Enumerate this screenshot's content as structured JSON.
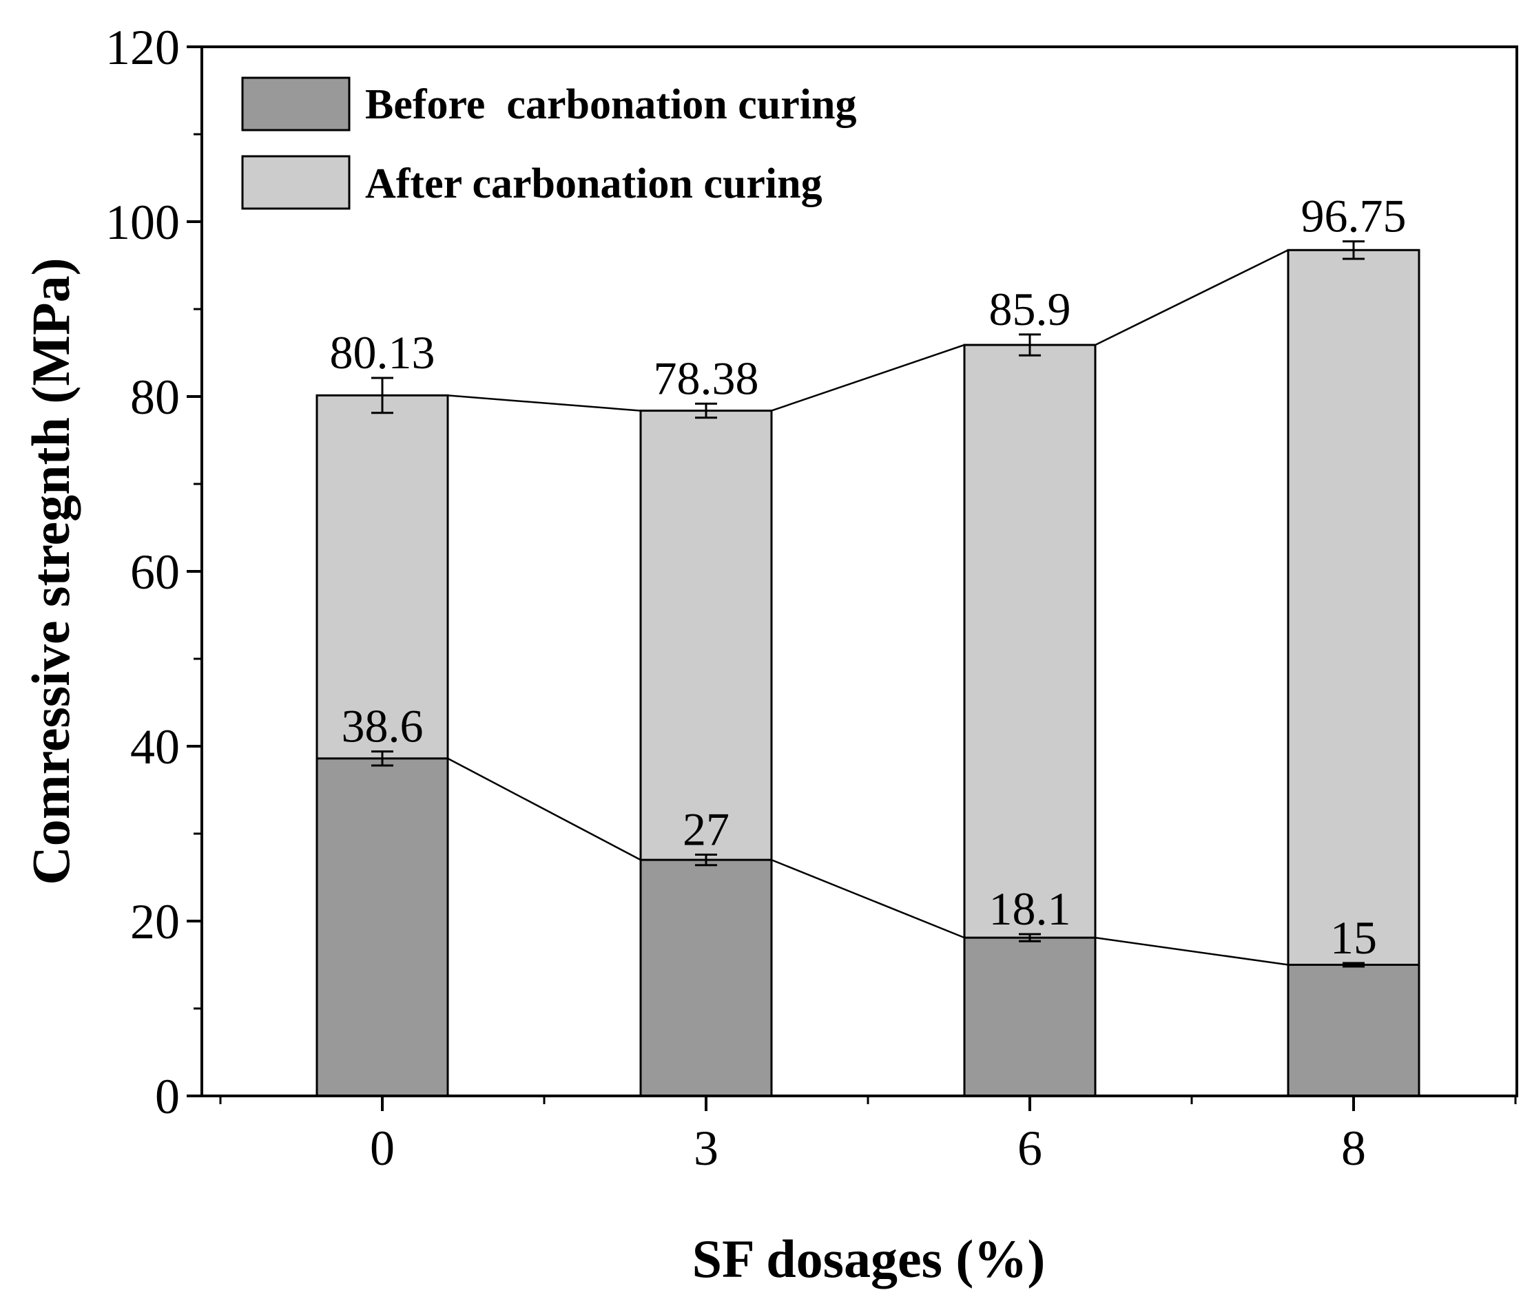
{
  "chart_data": {
    "type": "bar",
    "subtype": "overlapping bars with connecting lines and error bars",
    "categories": [
      "0",
      "3",
      "6",
      "8"
    ],
    "series": [
      {
        "name": "Before  carbonation curing",
        "values": [
          38.6,
          27,
          18.1,
          15
        ],
        "errors": [
          0.8,
          0.6,
          0.4,
          0.2
        ],
        "labels": [
          "38.6",
          "27",
          "18.1",
          "15"
        ],
        "color": "#999999"
      },
      {
        "name": "After carbonation curing",
        "values": [
          80.13,
          78.38,
          85.9,
          96.75
        ],
        "errors": [
          2.0,
          0.8,
          1.2,
          1.0
        ],
        "labels": [
          "80.13",
          "78.38",
          "85.9",
          "96.75"
        ],
        "color": "#cccccc"
      }
    ],
    "xlabel": "SF dosages (%)",
    "ylabel": "Comressive stregnth (MPa)",
    "ylim": [
      0,
      120
    ],
    "yticks": [
      "0",
      "20",
      "40",
      "60",
      "80",
      "100",
      "120"
    ],
    "grid": false,
    "legend_position": "top-left"
  }
}
